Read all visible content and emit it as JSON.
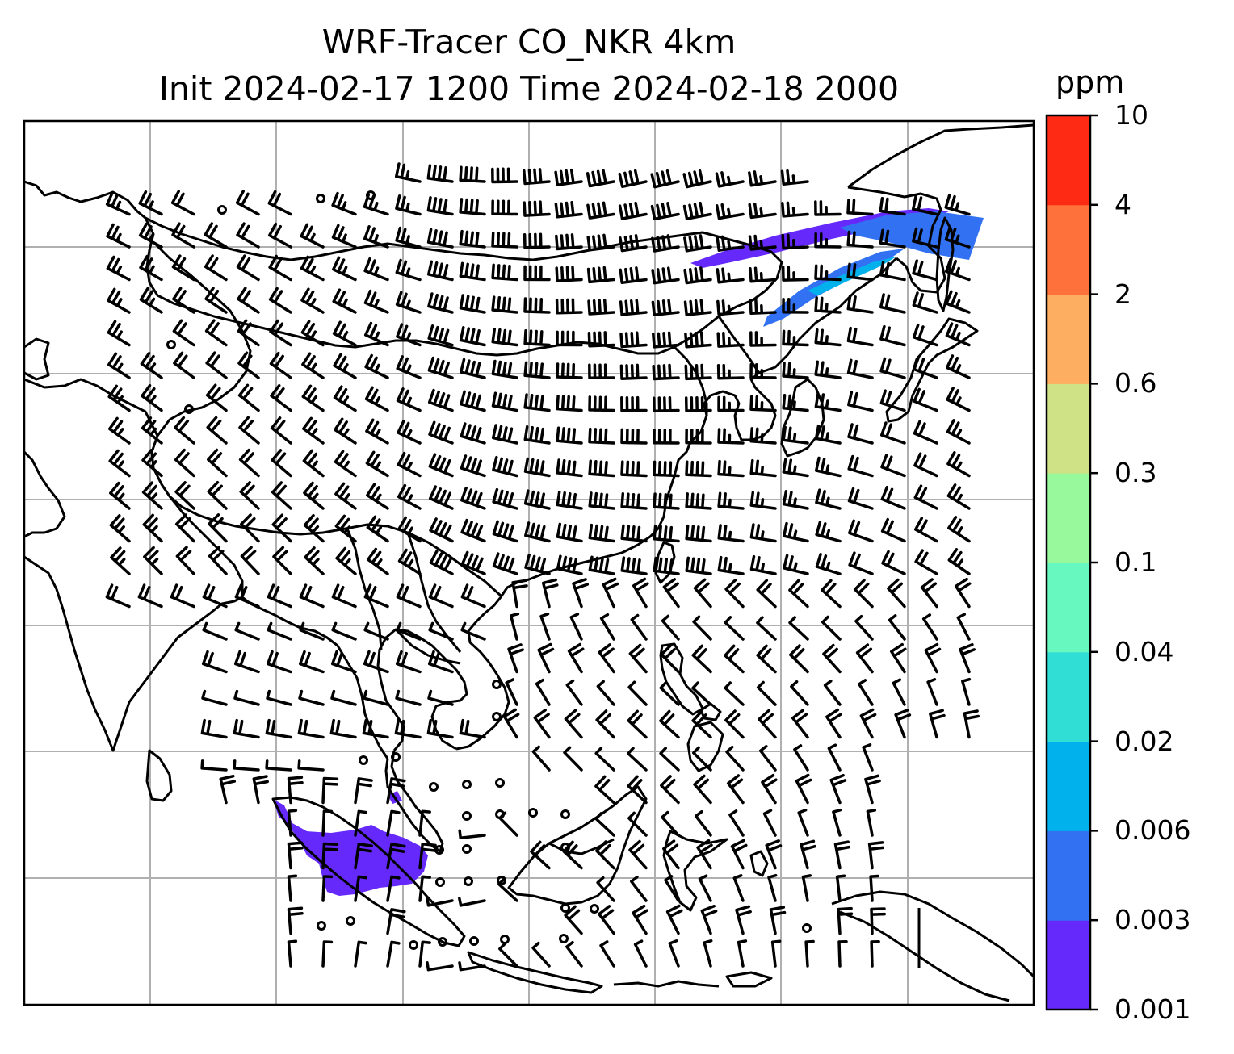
{
  "title": {
    "line1": "WRF-Tracer CO_NKR 4km",
    "line2": "Init 2024-02-17 1200 Time 2024-02-18 2000"
  },
  "colorbar": {
    "unit": "ppm",
    "ticks": [
      "0.001",
      "0.003",
      "0.006",
      "0.02",
      "0.04",
      "0.1",
      "0.3",
      "0.6",
      "2",
      "4",
      "10"
    ],
    "colors": [
      "#6629fb",
      "#3272f2",
      "#00b1ec",
      "#30ded6",
      "#67f8bf",
      "#98f99c",
      "#cfe286",
      "#fdae61",
      "#fe713b",
      "#ff2a14"
    ]
  },
  "map": {
    "frame_color": "#000000",
    "grid_color": "#b0b0b0",
    "coastline_color": "#000000",
    "plume_colors": {
      "low": "#6629fb",
      "mid": "#3272f2",
      "high": "#00b1ec"
    }
  }
}
